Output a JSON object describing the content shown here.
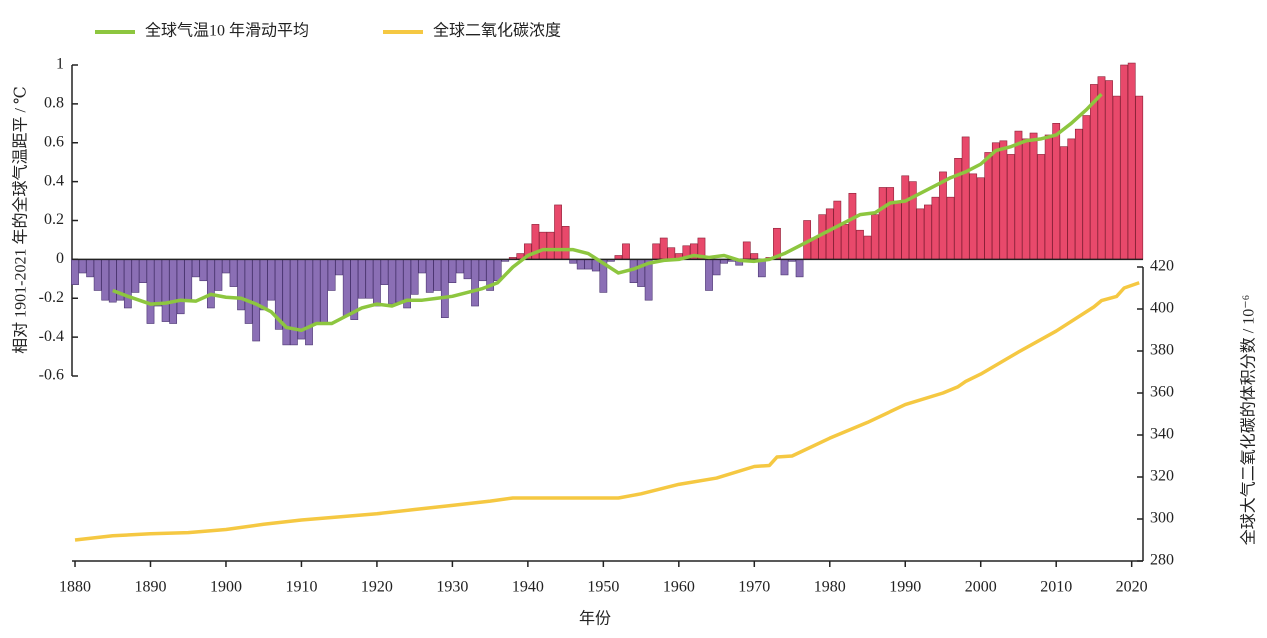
{
  "chart_data": {
    "type": "bar",
    "x_label": "年份",
    "y_label": "相对 1901-2021 年的全球气温距平 / ℃",
    "y2_label": "全球大气二氧化碳的体积分数 / 10⁻⁶",
    "xlim": [
      1879.6,
      2021.5
    ],
    "xticks": [
      1880,
      1890,
      1900,
      1910,
      1920,
      1930,
      1940,
      1950,
      1960,
      1970,
      1980,
      1990,
      2000,
      2010,
      2020
    ],
    "ylim": [
      -0.6,
      1
    ],
    "yticks": [
      -0.6,
      -0.4,
      -0.2,
      0,
      0.2,
      0.4,
      0.6,
      0.8,
      1
    ],
    "y2lim": [
      280,
      420
    ],
    "y2ticks": [
      280,
      300,
      320,
      340,
      360,
      380,
      400,
      420
    ],
    "positive_color": "#e8496b",
    "negative_color": "#8b6fb5",
    "x": [
      1880,
      1881,
      1882,
      1883,
      1884,
      1885,
      1886,
      1887,
      1888,
      1889,
      1890,
      1891,
      1892,
      1893,
      1894,
      1895,
      1896,
      1897,
      1898,
      1899,
      1900,
      1901,
      1902,
      1903,
      1904,
      1905,
      1906,
      1907,
      1908,
      1909,
      1910,
      1911,
      1912,
      1913,
      1914,
      1915,
      1916,
      1917,
      1918,
      1919,
      1920,
      1921,
      1922,
      1923,
      1924,
      1925,
      1926,
      1927,
      1928,
      1929,
      1930,
      1931,
      1932,
      1933,
      1934,
      1935,
      1936,
      1937,
      1938,
      1939,
      1940,
      1941,
      1942,
      1943,
      1944,
      1945,
      1946,
      1947,
      1948,
      1949,
      1950,
      1951,
      1952,
      1953,
      1954,
      1955,
      1956,
      1957,
      1958,
      1959,
      1960,
      1961,
      1962,
      1963,
      1964,
      1965,
      1966,
      1967,
      1968,
      1969,
      1970,
      1971,
      1972,
      1973,
      1974,
      1975,
      1976,
      1977,
      1978,
      1979,
      1980,
      1981,
      1982,
      1983,
      1984,
      1985,
      1986,
      1987,
      1988,
      1989,
      1990,
      1991,
      1992,
      1993,
      1994,
      1995,
      1996,
      1997,
      1998,
      1999,
      2000,
      2001,
      2002,
      2003,
      2004,
      2005,
      2006,
      2007,
      2008,
      2009,
      2010,
      2011,
      2012,
      2013,
      2014,
      2015,
      2016,
      2017,
      2018,
      2019,
      2020,
      2021
    ],
    "values": [
      -0.13,
      -0.07,
      -0.09,
      -0.16,
      -0.21,
      -0.22,
      -0.21,
      -0.25,
      -0.17,
      -0.12,
      -0.33,
      -0.24,
      -0.32,
      -0.33,
      -0.28,
      -0.21,
      -0.09,
      -0.11,
      -0.25,
      -0.16,
      -0.07,
      -0.14,
      -0.26,
      -0.33,
      -0.42,
      -0.26,
      -0.21,
      -0.36,
      -0.44,
      -0.44,
      -0.41,
      -0.44,
      -0.33,
      -0.33,
      -0.16,
      -0.08,
      -0.29,
      -0.31,
      -0.2,
      -0.2,
      -0.24,
      -0.13,
      -0.23,
      -0.22,
      -0.25,
      -0.18,
      -0.07,
      -0.17,
      -0.16,
      -0.3,
      -0.12,
      -0.07,
      -0.1,
      -0.24,
      -0.11,
      -0.16,
      -0.11,
      -0.01,
      0.01,
      0.03,
      0.08,
      0.18,
      0.14,
      0.14,
      0.28,
      0.17,
      -0.02,
      -0.05,
      -0.05,
      -0.06,
      -0.17,
      -0.01,
      0.02,
      0.08,
      -0.12,
      -0.14,
      -0.21,
      0.08,
      0.11,
      0.06,
      0.03,
      0.07,
      0.08,
      0.11,
      -0.16,
      -0.08,
      -0.02,
      -0.01,
      -0.03,
      0.09,
      0.03,
      -0.09,
      0.01,
      0.16,
      -0.08,
      -0.01,
      -0.09,
      0.2,
      0.11,
      0.23,
      0.26,
      0.3,
      0.18,
      0.34,
      0.15,
      0.12,
      0.23,
      0.37,
      0.37,
      0.3,
      0.43,
      0.4,
      0.26,
      0.28,
      0.32,
      0.45,
      0.32,
      0.52,
      0.63,
      0.44,
      0.42,
      0.55,
      0.6,
      0.61,
      0.54,
      0.66,
      0.62,
      0.65,
      0.54,
      0.64,
      0.7,
      0.58,
      0.62,
      0.67,
      0.74,
      0.9,
      0.94,
      0.92,
      0.84,
      1.0,
      1.01,
      0.84
    ],
    "series": [
      {
        "name": "全球气温10 年滑动平均",
        "color": "#8dc63f",
        "x": [
          1885,
          1887,
          1890,
          1892,
          1894,
          1896,
          1898,
          1900,
          1902,
          1904,
          1906,
          1908,
          1910,
          1912,
          1914,
          1916,
          1918,
          1920,
          1922,
          1924,
          1926,
          1928,
          1930,
          1932,
          1934,
          1936,
          1938,
          1940,
          1942,
          1944,
          1946,
          1948,
          1950,
          1952,
          1954,
          1956,
          1958,
          1960,
          1962,
          1964,
          1966,
          1968,
          1970,
          1972,
          1974,
          1976,
          1978,
          1980,
          1982,
          1984,
          1986,
          1988,
          1990,
          1992,
          1994,
          1996,
          1998,
          2000,
          2002,
          2004,
          2006,
          2008,
          2010,
          2012,
          2014,
          2016
        ],
        "values": [
          -0.16,
          -0.19,
          -0.23,
          -0.225,
          -0.21,
          -0.215,
          -0.18,
          -0.195,
          -0.2,
          -0.23,
          -0.27,
          -0.35,
          -0.365,
          -0.33,
          -0.33,
          -0.29,
          -0.25,
          -0.23,
          -0.24,
          -0.21,
          -0.21,
          -0.2,
          -0.19,
          -0.17,
          -0.15,
          -0.12,
          -0.04,
          0.02,
          0.05,
          0.05,
          0.05,
          0.03,
          -0.02,
          -0.07,
          -0.05,
          -0.02,
          -0.005,
          0,
          0.02,
          0.01,
          0.02,
          -0.005,
          -0.01,
          0,
          0.03,
          0.07,
          0.11,
          0.15,
          0.19,
          0.23,
          0.24,
          0.29,
          0.3,
          0.34,
          0.38,
          0.42,
          0.45,
          0.49,
          0.56,
          0.58,
          0.61,
          0.62,
          0.64,
          0.7,
          0.77,
          0.85
        ]
      },
      {
        "name": "全球二氧化碳浓度",
        "color": "#f5c842",
        "axis": "y2",
        "x": [
          1880,
          1885,
          1890,
          1895,
          1900,
          1905,
          1910,
          1915,
          1920,
          1925,
          1930,
          1935,
          1938,
          1945,
          1952,
          1955,
          1960,
          1965,
          1970,
          1972,
          1973,
          1975,
          1980,
          1985,
          1990,
          1995,
          1997,
          1998,
          2000,
          2005,
          2010,
          2015,
          2016,
          2018,
          2019,
          2021
        ],
        "values": [
          290,
          292,
          293,
          293.5,
          295,
          297.5,
          299.5,
          301,
          302.5,
          304.5,
          306.5,
          308.5,
          310,
          310,
          310,
          312,
          316.5,
          319.5,
          325,
          325.5,
          329.5,
          330,
          338.5,
          346,
          354.5,
          360,
          363,
          365.5,
          369,
          379.5,
          389.5,
          401,
          404,
          406,
          410,
          412.5
        ]
      }
    ]
  }
}
